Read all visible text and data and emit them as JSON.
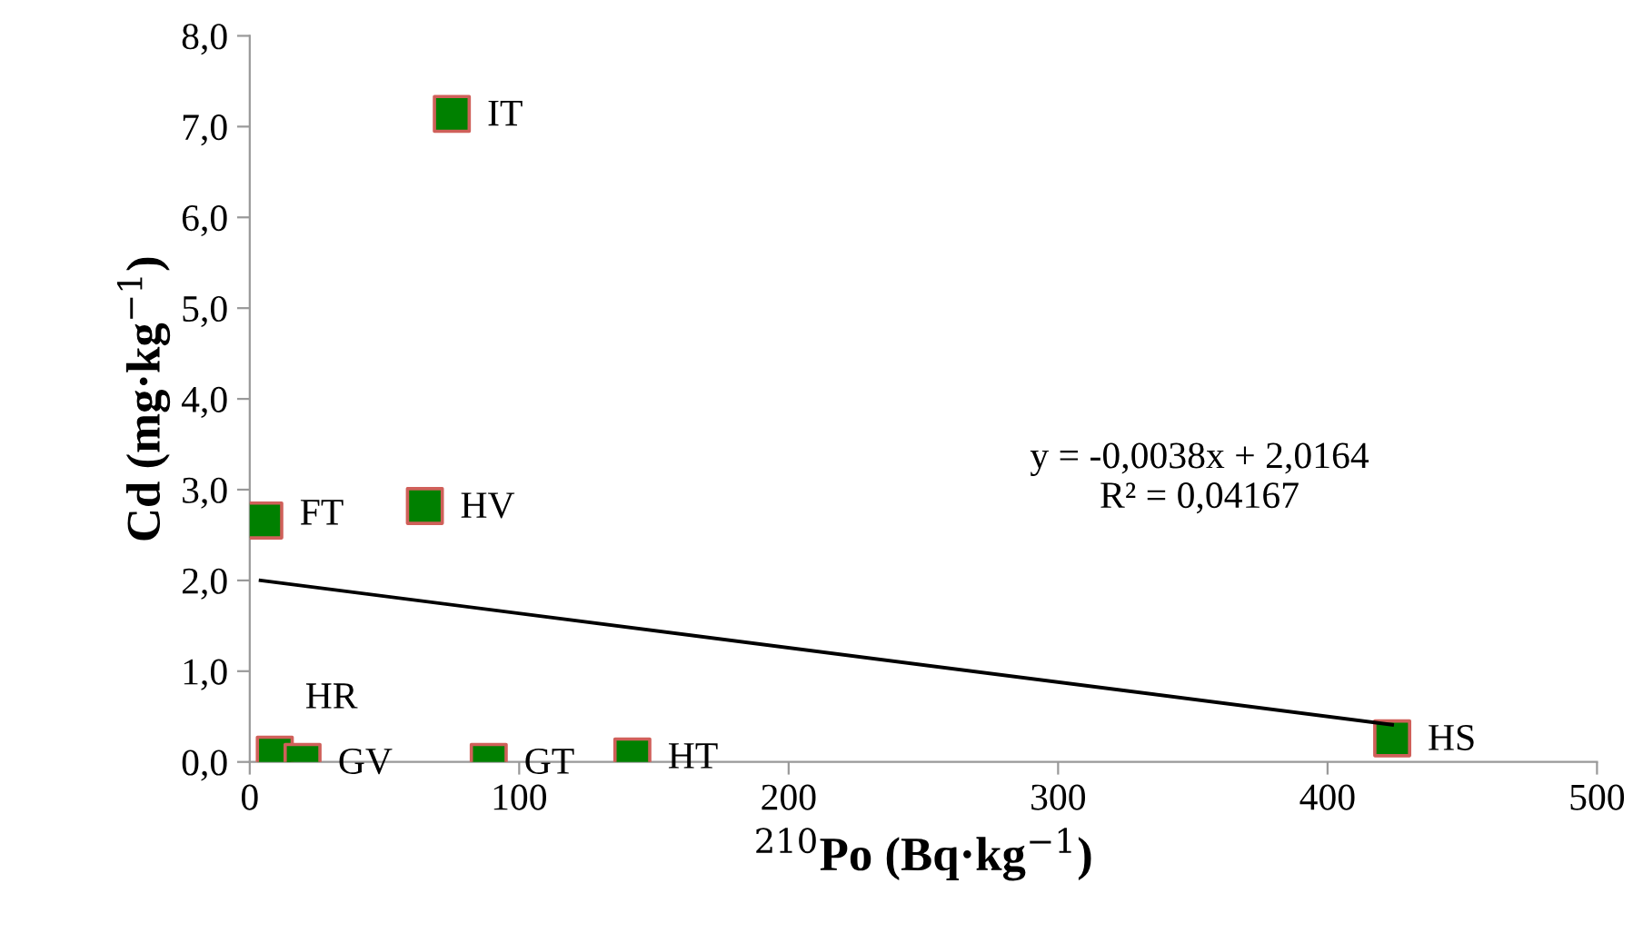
{
  "chart_data": {
    "type": "scatter",
    "xlabel": "$^{210}$Po (Bq·kg$^{−1}$)",
    "ylabel": "Cd (mg·kg$^{−1}$)",
    "xlim": [
      0,
      500
    ],
    "ylim": [
      0,
      8
    ],
    "xticks": [
      0,
      100,
      200,
      300,
      400,
      500
    ],
    "yticks": [
      {
        "value": 0,
        "label": "0,0"
      },
      {
        "value": 1,
        "label": "1,0"
      },
      {
        "value": 2,
        "label": "2,0"
      },
      {
        "value": 3,
        "label": "3,0"
      },
      {
        "value": 4,
        "label": "4,0"
      },
      {
        "value": 5,
        "label": "5,0"
      },
      {
        "value": 6,
        "label": "6,0"
      },
      {
        "value": 7,
        "label": "7,0"
      },
      {
        "value": 8,
        "label": "8,0"
      }
    ],
    "grid": false,
    "legend": false,
    "series": [
      {
        "color": "#008000",
        "marker": "square",
        "x": [
          75,
          5.4,
          65,
          9.3,
          19.6,
          88.7,
          142,
          424
        ],
        "values": [
          7.14,
          2.66,
          2.82,
          0.08,
          0,
          0,
          0.06,
          0.26
        ]
      },
      {
        "type": "line",
        "color": "#000000",
        "marker": "none",
        "line_style": "solid",
        "x": [
          4,
          424
        ],
        "values": [
          2.0,
          0.41
        ]
      }
    ],
    "annotations": [
      {
        "text": "IT",
        "x": 75,
        "y": 7.14
      },
      {
        "text": "FT",
        "x": 5.4,
        "y": 2.66
      },
      {
        "text": "HV",
        "x": 65,
        "y": 2.82
      },
      {
        "text": "HR",
        "x": 9.3,
        "y": 0.08
      },
      {
        "text": "GV",
        "x": 19.6,
        "y": 0
      },
      {
        "text": "GT",
        "x": 88.7,
        "y": 0
      },
      {
        "text": "HT",
        "x": 142,
        "y": 0.06
      },
      {
        "text": "HS",
        "x": 424,
        "y": 0.26
      },
      "y = -0,0038x + 2,0164\nR² = 0,04167"
    ]
  }
}
